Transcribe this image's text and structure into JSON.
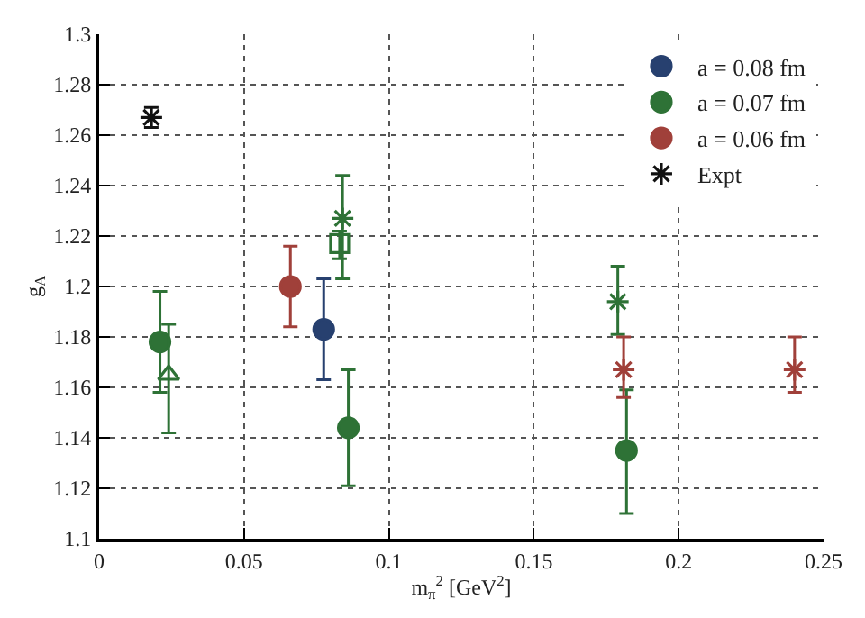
{
  "chart_data": {
    "type": "scatter",
    "xlabel": "m$_{π}$$^{2}$ [GeV$^{2}$]",
    "ylabel": "g$_{A}$",
    "xlim": [
      0,
      0.25
    ],
    "xticks": [
      0,
      0.05,
      0.1,
      0.15,
      0.2,
      0.25
    ],
    "ylim": [
      1.1,
      1.3
    ],
    "yticks": [
      1.1,
      1.12,
      1.14,
      1.16,
      1.18,
      1.2,
      1.22,
      1.24,
      1.26,
      1.28,
      1.3
    ],
    "grid": true,
    "legend": "top right",
    "series": [
      {
        "name": "a = 0.08 fm",
        "color": "#27406f",
        "marker": "circle",
        "x": [
          0.0775
        ],
        "values": [
          1.183
        ],
        "errors": [
          [
            1.163,
            1.203
          ]
        ]
      },
      {
        "name": "a = 0.07 fm",
        "color": "#2e7236",
        "marker": "circle",
        "x": [
          0.021,
          0.086,
          0.182
        ],
        "values": [
          1.178,
          1.144,
          1.135
        ],
        "errors": [
          [
            1.158,
            1.198
          ],
          [
            1.121,
            1.167
          ],
          [
            1.11,
            1.159
          ]
        ]
      },
      {
        "name": "a = 0.06 fm",
        "color": "#a0403a",
        "marker": "circle",
        "x": [
          0.066
        ],
        "values": [
          1.2
        ],
        "errors": [
          [
            1.184,
            1.216
          ]
        ]
      },
      {
        "name": "Expt",
        "color": "#111111",
        "marker": "cross",
        "x": [
          0.018
        ],
        "values": [
          1.267
        ],
        "errors": [
          [
            1.263,
            1.271
          ]
        ]
      },
      {
        "color": "#2e7236",
        "marker": "triangle",
        "x": [
          0.024
        ],
        "values": [
          1.165
        ],
        "errors": [
          [
            1.142,
            1.185
          ]
        ]
      },
      {
        "color": "#2e7236",
        "marker": "square",
        "x": [
          0.083
        ],
        "values": [
          1.217
        ],
        "errors": [
          [
            1.211,
            1.222
          ]
        ]
      },
      {
        "color": "#2e7236",
        "marker": "cross",
        "x": [
          0.084,
          0.179
        ],
        "values": [
          1.227,
          1.194
        ],
        "errors": [
          [
            1.203,
            1.244
          ],
          [
            1.181,
            1.208
          ]
        ]
      },
      {
        "color": "#a0403a",
        "marker": "cross",
        "x": [
          0.181,
          0.24
        ],
        "values": [
          1.167,
          1.167
        ],
        "errors": [
          [
            1.156,
            1.18
          ],
          [
            1.158,
            1.18
          ]
        ]
      }
    ]
  }
}
